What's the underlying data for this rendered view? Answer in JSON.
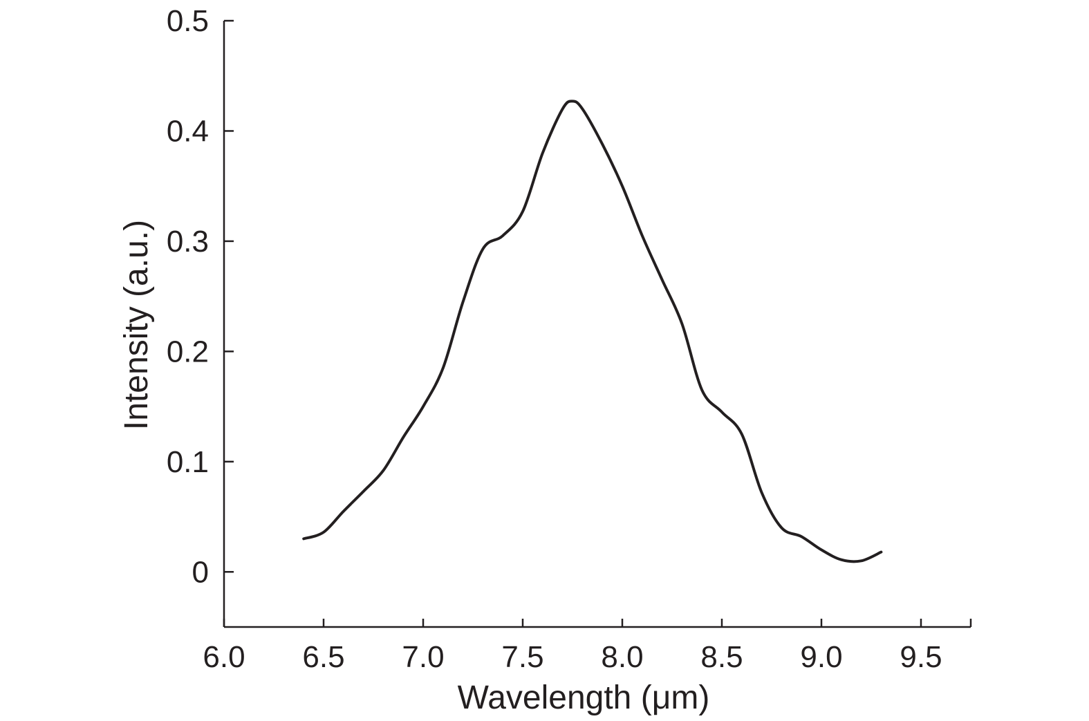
{
  "chart_data": {
    "type": "line",
    "title": "",
    "xlabel": "Wavelength (μm)",
    "ylabel": "Intensity (a.u.)",
    "xlim": [
      6.0,
      9.75
    ],
    "ylim": [
      -0.05,
      0.5
    ],
    "xticks": [
      6.0,
      6.5,
      7.0,
      7.5,
      8.0,
      8.5,
      9.0,
      9.5
    ],
    "xtick_labels": [
      "6.0",
      "6.5",
      "7.0",
      "7.5",
      "8.0",
      "8.5",
      "9.0",
      "9.5"
    ],
    "yticks": [
      0,
      0.1,
      0.2,
      0.3,
      0.4,
      0.5
    ],
    "ytick_labels": [
      "0",
      "0.1",
      "0.2",
      "0.3",
      "0.4",
      "0.5"
    ],
    "grid": false,
    "legend": "none",
    "colors": {
      "line": "#231f20",
      "axis": "#231f20"
    },
    "series": [
      {
        "x": [
          6.4,
          6.5,
          6.6,
          6.7,
          6.8,
          6.9,
          7.0,
          7.1,
          7.2,
          7.3,
          7.4,
          7.5,
          7.6,
          7.7,
          7.75,
          7.8,
          7.9,
          8.0,
          8.1,
          8.2,
          8.3,
          8.4,
          8.5,
          8.6,
          8.7,
          8.8,
          8.9,
          9.0,
          9.1,
          9.2,
          9.3
        ],
        "y": [
          0.03,
          0.036,
          0.055,
          0.073,
          0.092,
          0.122,
          0.15,
          0.185,
          0.245,
          0.293,
          0.305,
          0.327,
          0.38,
          0.42,
          0.427,
          0.42,
          0.388,
          0.35,
          0.305,
          0.265,
          0.225,
          0.165,
          0.145,
          0.125,
          0.072,
          0.04,
          0.032,
          0.02,
          0.011,
          0.01,
          0.018
        ]
      }
    ]
  }
}
